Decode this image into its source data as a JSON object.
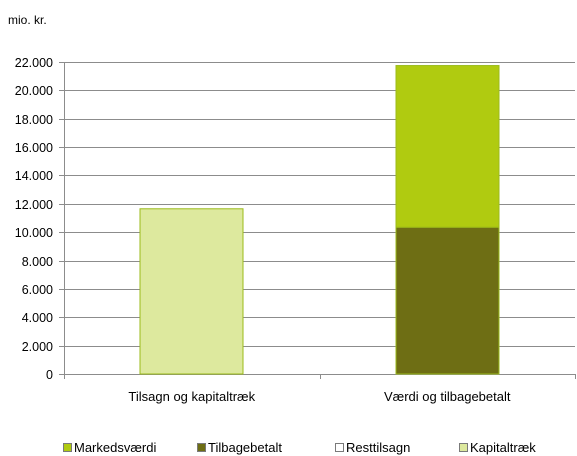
{
  "chart_data": {
    "type": "bar",
    "stacked": true,
    "ylabel": "mio. kr.",
    "ylim": [
      0,
      22000
    ],
    "ytick_step": 2000,
    "ytick_labels": [
      "0",
      "2.000",
      "4.000",
      "6.000",
      "8.000",
      "10.000",
      "12.000",
      "14.000",
      "16.000",
      "18.000",
      "20.000",
      "22.000"
    ],
    "categories": [
      "Tilsagn og kapitaltræk",
      "Værdi og tilbagebetalt"
    ],
    "series": [
      {
        "name": "Markedsværdi",
        "color": "#b0cb10",
        "values": [
          0,
          11400
        ]
      },
      {
        "name": "Tilbagebetalt",
        "color": "#6e6e14",
        "values": [
          0,
          10350
        ]
      },
      {
        "name": "Resttilsagn",
        "color": "#ffffff",
        "values": [
          0,
          0
        ]
      },
      {
        "name": "Kapitaltræk",
        "color": "#dde99e",
        "values": [
          11650,
          0
        ]
      }
    ],
    "stack_order": [
      [
        "Resttilsagn",
        "Kapitaltræk"
      ],
      [
        "Tilbagebetalt",
        "Markedsværdi"
      ]
    ],
    "grid": true,
    "legend_position": "bottom"
  }
}
